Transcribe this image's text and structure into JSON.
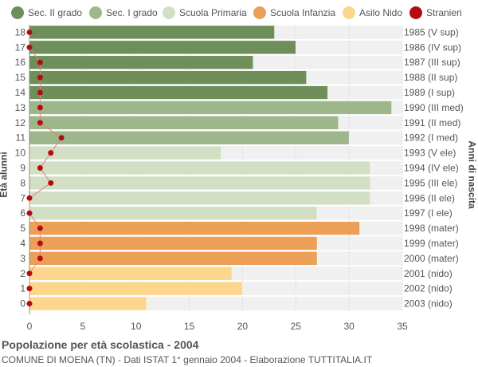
{
  "chart_data": {
    "type": "bar",
    "orientation": "horizontal",
    "title": "Popolazione per età scolastica - 2004",
    "subtitle": "COMUNE DI MOENA (TN) - Dati ISTAT 1° gennaio 2004 - Elaborazione TUTTITALIA.IT",
    "ylabel": "Età alunni",
    "ylabel_right": "Anni di nascita",
    "xlim": [
      0,
      35
    ],
    "xticks": [
      "0",
      "5",
      "10",
      "15",
      "20",
      "25",
      "30",
      "35"
    ],
    "grid": true,
    "legend_position": "top",
    "legend": [
      {
        "name": "Sec. II grado",
        "color": "#6e8f5a"
      },
      {
        "name": "Sec. I grado",
        "color": "#9db78a"
      },
      {
        "name": "Scuola Primaria",
        "color": "#d3dfc4"
      },
      {
        "name": "Scuola Infanzia",
        "color": "#ec9f57"
      },
      {
        "name": "Asilo Nido",
        "color": "#fdd68e"
      },
      {
        "name": "Stranieri",
        "color": "#b30d12"
      }
    ],
    "rows": [
      {
        "age": "18",
        "year": "1985 (V sup)",
        "value": 23,
        "stranieri": 0,
        "group": 0
      },
      {
        "age": "17",
        "year": "1986 (IV sup)",
        "value": 25,
        "stranieri": 0,
        "group": 0
      },
      {
        "age": "16",
        "year": "1987 (III sup)",
        "value": 21,
        "stranieri": 1,
        "group": 0
      },
      {
        "age": "15",
        "year": "1988 (II sup)",
        "value": 26,
        "stranieri": 1,
        "group": 0
      },
      {
        "age": "14",
        "year": "1989 (I sup)",
        "value": 28,
        "stranieri": 1,
        "group": 0
      },
      {
        "age": "13",
        "year": "1990 (III med)",
        "value": 34,
        "stranieri": 1,
        "group": 1
      },
      {
        "age": "12",
        "year": "1991 (II med)",
        "value": 29,
        "stranieri": 1,
        "group": 1
      },
      {
        "age": "11",
        "year": "1992 (I med)",
        "value": 30,
        "stranieri": 3,
        "group": 1
      },
      {
        "age": "10",
        "year": "1993 (V ele)",
        "value": 18,
        "stranieri": 2,
        "group": 2
      },
      {
        "age": "9",
        "year": "1994 (IV ele)",
        "value": 32,
        "stranieri": 1,
        "group": 2
      },
      {
        "age": "8",
        "year": "1995 (III ele)",
        "value": 32,
        "stranieri": 2,
        "group": 2
      },
      {
        "age": "7",
        "year": "1996 (II ele)",
        "value": 32,
        "stranieri": 0,
        "group": 2
      },
      {
        "age": "6",
        "year": "1997 (I ele)",
        "value": 27,
        "stranieri": 0,
        "group": 2
      },
      {
        "age": "5",
        "year": "1998 (mater)",
        "value": 31,
        "stranieri": 1,
        "group": 3
      },
      {
        "age": "4",
        "year": "1999 (mater)",
        "value": 27,
        "stranieri": 1,
        "group": 3
      },
      {
        "age": "3",
        "year": "2000 (mater)",
        "value": 27,
        "stranieri": 1,
        "group": 3
      },
      {
        "age": "2",
        "year": "2001 (nido)",
        "value": 19,
        "stranieri": 0,
        "group": 4
      },
      {
        "age": "1",
        "year": "2002 (nido)",
        "value": 20,
        "stranieri": 0,
        "group": 4
      },
      {
        "age": "0",
        "year": "2003 (nido)",
        "value": 11,
        "stranieri": 0,
        "group": 4
      }
    ]
  }
}
